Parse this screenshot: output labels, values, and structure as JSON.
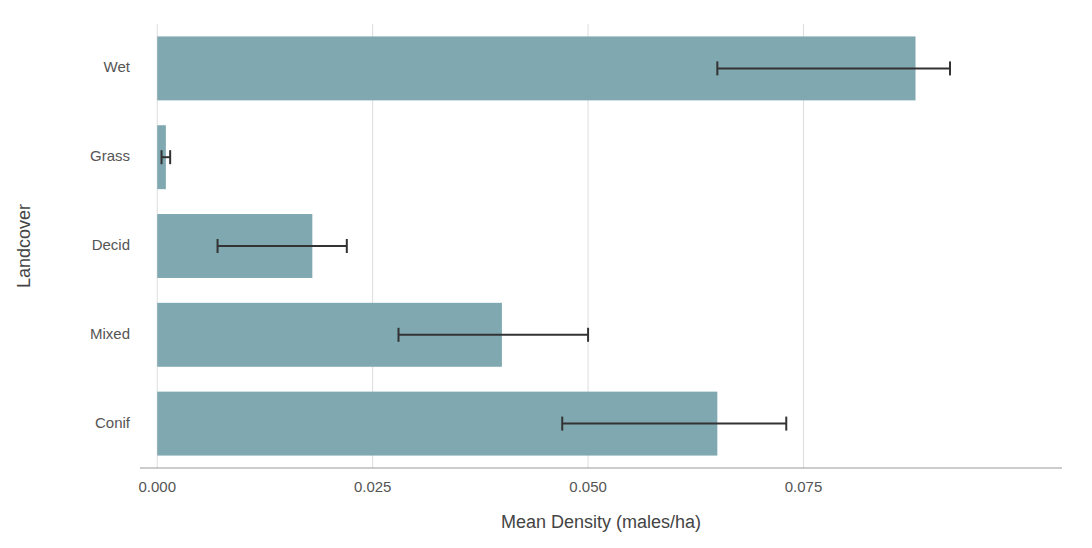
{
  "chart_data": {
    "type": "bar",
    "orientation": "horizontal",
    "xlabel": "Mean Density (males/ha)",
    "ylabel": "Landcover",
    "categories": [
      "Wet",
      "Grass",
      "Decid",
      "Mixed",
      "Conif"
    ],
    "values": [
      0.088,
      0.001,
      0.018,
      0.04,
      0.065
    ],
    "error_centers": [
      0.07,
      0.001,
      0.01,
      0.033,
      0.052
    ],
    "error_lower": [
      0.005,
      0.0005,
      0.003,
      0.005,
      0.005
    ],
    "error_upper": [
      0.022,
      0.0005,
      0.012,
      0.017,
      0.021
    ],
    "color": "#7fa8b0",
    "xlim": [
      -0.002,
      0.105
    ],
    "xticks": [
      {
        "value": 0.0,
        "label": "0.000"
      },
      0.025,
      {
        "value": 0.05,
        "label": "0.050"
      },
      {
        "value": 0.075,
        "label": "0.075"
      }
    ],
    "grid": true
  }
}
